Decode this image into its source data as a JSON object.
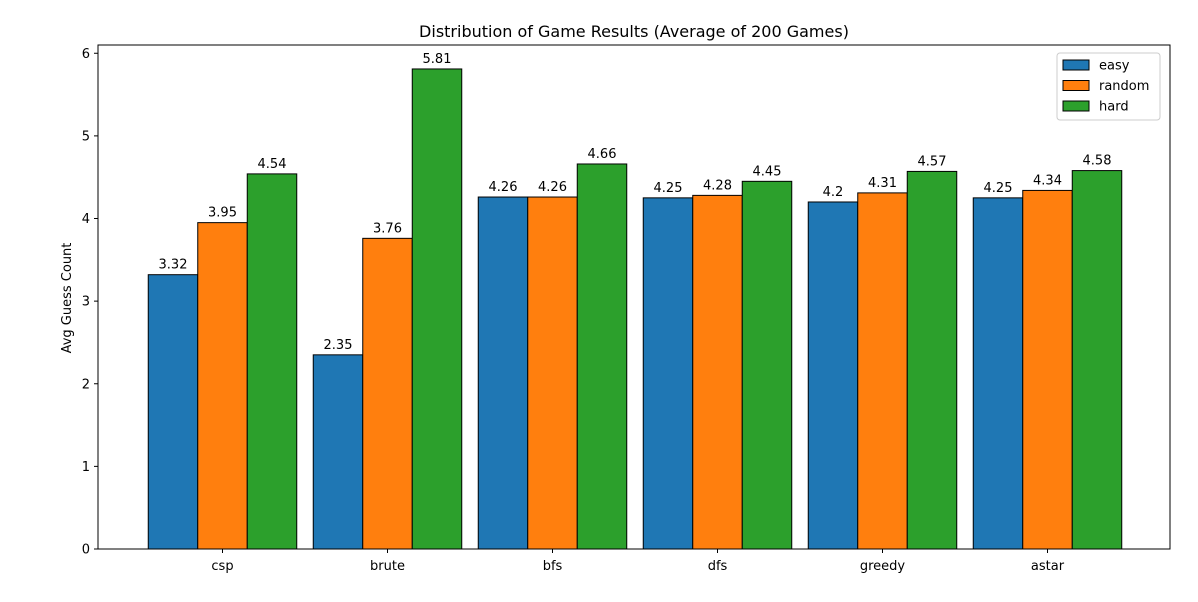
{
  "chart_data": {
    "type": "bar",
    "title": "Distribution of Game Results (Average of 200 Games)",
    "xlabel": "",
    "ylabel": "Avg Guess Count",
    "categories": [
      "csp",
      "brute",
      "bfs",
      "dfs",
      "greedy",
      "astar"
    ],
    "series": [
      {
        "name": "easy",
        "color": "#1f77b4",
        "values": [
          3.32,
          2.35,
          4.26,
          4.25,
          4.2,
          4.25
        ],
        "labels": [
          "3.32",
          "2.35",
          "4.26",
          "4.25",
          "4.2",
          "4.25"
        ]
      },
      {
        "name": "random",
        "color": "#ff7f0e",
        "values": [
          3.95,
          3.76,
          4.26,
          4.28,
          4.31,
          4.34
        ],
        "labels": [
          "3.95",
          "3.76",
          "4.26",
          "4.28",
          "4.31",
          "4.34"
        ]
      },
      {
        "name": "hard",
        "color": "#2ca02c",
        "values": [
          4.54,
          5.81,
          4.66,
          4.45,
          4.57,
          4.58
        ],
        "labels": [
          "4.54",
          "5.81",
          "4.66",
          "4.45",
          "4.57",
          "4.58"
        ]
      }
    ],
    "ylim": [
      0,
      6.1
    ],
    "yticks": [
      0,
      1,
      2,
      3,
      4,
      5,
      6
    ],
    "ytick_labels": [
      "0",
      "1",
      "2",
      "3",
      "4",
      "5",
      "6"
    ],
    "grid": false,
    "legend_position": "top-right"
  }
}
